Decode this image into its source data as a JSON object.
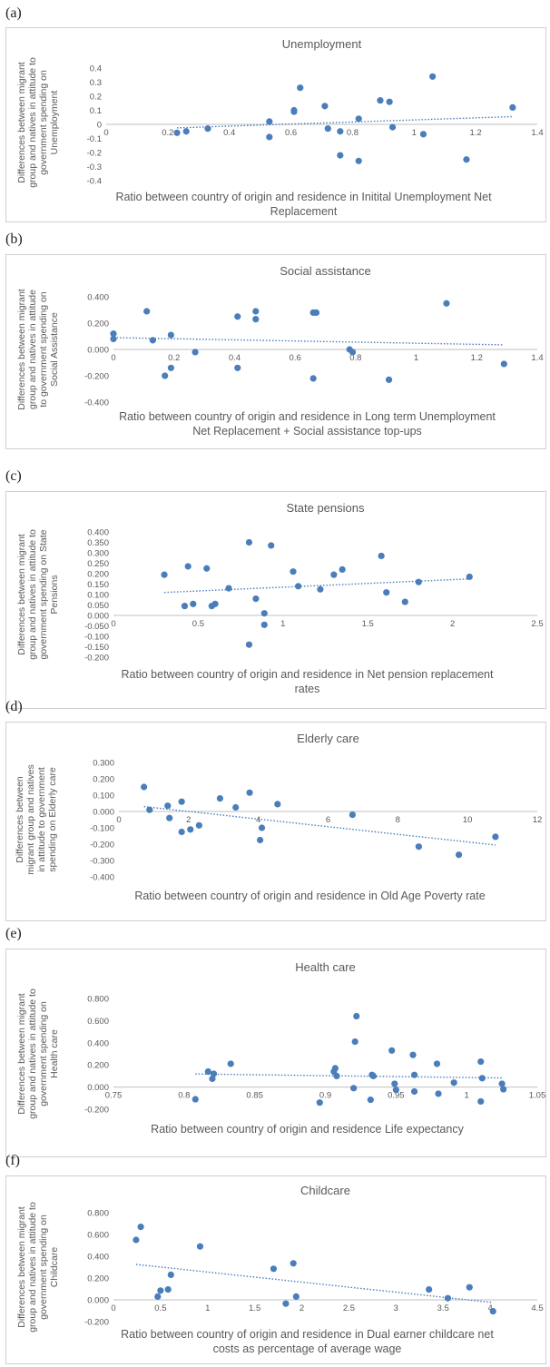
{
  "chart_data": [
    {
      "type": "scatter",
      "panel": "(a)",
      "title": "Unemployment",
      "xlabel": [
        "Ratio between country of origin and residence in Initital Unemployment Net",
        "Replacement"
      ],
      "ylabel": [
        "Differences between migrant",
        "group and natives in attitude to",
        "government spending on",
        "Unemployment"
      ],
      "xlim": [
        0,
        1.4
      ],
      "ylim": [
        -0.4,
        0.4
      ],
      "xticks": [
        "0",
        "0.2",
        "0.4",
        "0.6",
        "0.8",
        "1",
        "1.2",
        "1.4"
      ],
      "yticks": [
        "0.4",
        "0.3",
        "0.2",
        "0.1",
        "0",
        "-0.1",
        "-0.2",
        "-0.3",
        "-0.4"
      ],
      "trendline": "linear, dotted",
      "points": [
        {
          "x": 0.23,
          "y": -0.06
        },
        {
          "x": 0.26,
          "y": -0.05
        },
        {
          "x": 0.33,
          "y": -0.03
        },
        {
          "x": 0.53,
          "y": 0.02
        },
        {
          "x": 0.53,
          "y": -0.09
        },
        {
          "x": 0.61,
          "y": 0.1
        },
        {
          "x": 0.61,
          "y": 0.09
        },
        {
          "x": 0.63,
          "y": 0.26
        },
        {
          "x": 0.71,
          "y": 0.13
        },
        {
          "x": 0.72,
          "y": -0.03
        },
        {
          "x": 0.76,
          "y": -0.05
        },
        {
          "x": 0.76,
          "y": -0.22
        },
        {
          "x": 0.82,
          "y": 0.04
        },
        {
          "x": 0.82,
          "y": -0.26
        },
        {
          "x": 0.89,
          "y": 0.17
        },
        {
          "x": 0.92,
          "y": 0.16
        },
        {
          "x": 0.93,
          "y": -0.02
        },
        {
          "x": 1.03,
          "y": -0.07
        },
        {
          "x": 1.06,
          "y": 0.34
        },
        {
          "x": 1.17,
          "y": -0.25
        },
        {
          "x": 1.32,
          "y": 0.12
        }
      ],
      "trend": [
        [
          0.23,
          -0.025
        ],
        [
          1.32,
          0.055
        ]
      ]
    },
    {
      "type": "scatter",
      "panel": "(b)",
      "title": "Social assistance",
      "xlabel": [
        "Ratio between country of origin and residence in Long term Unemployment",
        "Net Replacement + Social assistance top-ups"
      ],
      "ylabel": [
        "Differences between migrant",
        "group and natives in attitude",
        "to government spending on",
        "Social Assistance"
      ],
      "xlim": [
        0,
        1.4
      ],
      "ylim": [
        -0.4,
        0.4
      ],
      "xticks": [
        "0",
        "0.2",
        "0.4",
        "0.6",
        "0.8",
        "1",
        "1.2",
        "1.4"
      ],
      "yticks": [
        "0.400",
        "0.200",
        "0.000",
        "-0.200",
        "-0.400"
      ],
      "trendline": "linear, dotted",
      "points": [
        {
          "x": 0.0,
          "y": 0.12
        },
        {
          "x": 0.0,
          "y": 0.08
        },
        {
          "x": 0.11,
          "y": 0.29
        },
        {
          "x": 0.13,
          "y": 0.07
        },
        {
          "x": 0.17,
          "y": -0.2
        },
        {
          "x": 0.19,
          "y": 0.11
        },
        {
          "x": 0.19,
          "y": -0.14
        },
        {
          "x": 0.27,
          "y": -0.02
        },
        {
          "x": 0.41,
          "y": 0.25
        },
        {
          "x": 0.41,
          "y": -0.14
        },
        {
          "x": 0.47,
          "y": 0.29
        },
        {
          "x": 0.47,
          "y": 0.23
        },
        {
          "x": 0.66,
          "y": 0.28
        },
        {
          "x": 0.67,
          "y": 0.28
        },
        {
          "x": 0.66,
          "y": -0.22
        },
        {
          "x": 0.78,
          "y": 0.0
        },
        {
          "x": 0.79,
          "y": -0.02
        },
        {
          "x": 0.91,
          "y": -0.23
        },
        {
          "x": 1.1,
          "y": 0.35
        },
        {
          "x": 1.29,
          "y": -0.11
        }
      ],
      "trend": [
        [
          0.0,
          0.09
        ],
        [
          1.29,
          0.035
        ]
      ]
    },
    {
      "type": "scatter",
      "panel": "(c)",
      "title": "State pensions",
      "xlabel": [
        "Ratio between country of origin and residence in Net pension replacement",
        "rates"
      ],
      "ylabel": [
        "Differences between migrant",
        "group and natives in attitude to",
        "government spending on State",
        "Pensions"
      ],
      "xlim": [
        0,
        2.5
      ],
      "ylim": [
        -0.2,
        0.4
      ],
      "xticks": [
        "0",
        "0.5",
        "1",
        "1.5",
        "2",
        "2.5"
      ],
      "yticks": [
        "0.400",
        "0.350",
        "0.300",
        "0.250",
        "0.200",
        "0.150",
        "0.100",
        "0.050",
        "0.000",
        "-0.050",
        "-0.100",
        "-0.150",
        "-0.200"
      ],
      "trendline": "linear, dotted",
      "points": [
        {
          "x": 0.3,
          "y": 0.195
        },
        {
          "x": 0.42,
          "y": 0.045
        },
        {
          "x": 0.44,
          "y": 0.235
        },
        {
          "x": 0.47,
          "y": 0.055
        },
        {
          "x": 0.55,
          "y": 0.225
        },
        {
          "x": 0.58,
          "y": 0.045
        },
        {
          "x": 0.6,
          "y": 0.055
        },
        {
          "x": 0.68,
          "y": 0.13
        },
        {
          "x": 0.8,
          "y": 0.35
        },
        {
          "x": 0.8,
          "y": -0.14
        },
        {
          "x": 0.84,
          "y": 0.08
        },
        {
          "x": 0.89,
          "y": 0.01
        },
        {
          "x": 0.89,
          "y": -0.045
        },
        {
          "x": 0.93,
          "y": 0.335
        },
        {
          "x": 1.06,
          "y": 0.21
        },
        {
          "x": 1.09,
          "y": 0.14
        },
        {
          "x": 1.22,
          "y": 0.125
        },
        {
          "x": 1.3,
          "y": 0.195
        },
        {
          "x": 1.35,
          "y": 0.22
        },
        {
          "x": 1.58,
          "y": 0.285
        },
        {
          "x": 1.61,
          "y": 0.11
        },
        {
          "x": 1.72,
          "y": 0.065
        },
        {
          "x": 1.8,
          "y": 0.16
        },
        {
          "x": 2.1,
          "y": 0.185
        }
      ],
      "trend": [
        [
          0.3,
          0.11
        ],
        [
          2.1,
          0.175
        ]
      ]
    },
    {
      "type": "scatter",
      "panel": "(d)",
      "title": "Elderly care",
      "xlabel": [
        "Ratio between country of origin and residence in Old Age Poverty rate"
      ],
      "ylabel": [
        "Differences between",
        "migrant group and natives",
        "in attitude to government",
        "spending on Elderly care"
      ],
      "xlim": [
        0,
        12
      ],
      "ylim": [
        -0.4,
        0.3
      ],
      "xticks": [
        "0",
        "2",
        "4",
        "6",
        "8",
        "10",
        "12"
      ],
      "yticks": [
        "0.300",
        "0.200",
        "0.100",
        "0.000",
        "-0.100",
        "-0.200",
        "-0.300",
        "-0.400"
      ],
      "trendline": "linear, dotted",
      "points": [
        {
          "x": 0.72,
          "y": 0.15
        },
        {
          "x": 0.88,
          "y": 0.01
        },
        {
          "x": 1.4,
          "y": 0.035
        },
        {
          "x": 1.45,
          "y": -0.04
        },
        {
          "x": 1.8,
          "y": 0.06
        },
        {
          "x": 1.8,
          "y": -0.125
        },
        {
          "x": 2.05,
          "y": -0.11
        },
        {
          "x": 2.3,
          "y": -0.085
        },
        {
          "x": 2.9,
          "y": 0.08
        },
        {
          "x": 3.35,
          "y": 0.025
        },
        {
          "x": 3.75,
          "y": 0.115
        },
        {
          "x": 4.05,
          "y": -0.175
        },
        {
          "x": 4.1,
          "y": -0.1
        },
        {
          "x": 4.55,
          "y": 0.045
        },
        {
          "x": 6.7,
          "y": -0.02
        },
        {
          "x": 8.6,
          "y": -0.215
        },
        {
          "x": 9.75,
          "y": -0.265
        },
        {
          "x": 10.8,
          "y": -0.155
        }
      ],
      "trend": [
        [
          0.72,
          0.03
        ],
        [
          10.8,
          -0.205
        ]
      ]
    },
    {
      "type": "scatter",
      "panel": "(e)",
      "title": "Health care",
      "xlabel": [
        "Ratio between country of origin and residence Life expectancy"
      ],
      "ylabel": [
        "Differences between migrant",
        "group and natives in attitude to",
        "government spending on",
        "Health care"
      ],
      "xlim": [
        0.75,
        1.05
      ],
      "ylim": [
        -0.2,
        0.8
      ],
      "xticks": [
        "0.75",
        "0.8",
        "0.85",
        "0.9",
        "0.95",
        "1",
        "1.05"
      ],
      "yticks": [
        "0.800",
        "0.600",
        "0.400",
        "0.200",
        "0.000",
        "-0.200"
      ],
      "trendline": "linear, dotted",
      "points": [
        {
          "x": 0.808,
          "y": -0.11
        },
        {
          "x": 0.817,
          "y": 0.14
        },
        {
          "x": 0.82,
          "y": 0.075
        },
        {
          "x": 0.821,
          "y": 0.12
        },
        {
          "x": 0.833,
          "y": 0.21
        },
        {
          "x": 0.896,
          "y": -0.14
        },
        {
          "x": 0.906,
          "y": 0.14
        },
        {
          "x": 0.907,
          "y": 0.17
        },
        {
          "x": 0.908,
          "y": 0.1
        },
        {
          "x": 0.92,
          "y": -0.01
        },
        {
          "x": 0.921,
          "y": 0.41
        },
        {
          "x": 0.922,
          "y": 0.64
        },
        {
          "x": 0.932,
          "y": -0.115
        },
        {
          "x": 0.933,
          "y": 0.11
        },
        {
          "x": 0.934,
          "y": 0.1
        },
        {
          "x": 0.947,
          "y": 0.33
        },
        {
          "x": 0.949,
          "y": 0.03
        },
        {
          "x": 0.95,
          "y": -0.025
        },
        {
          "x": 0.962,
          "y": 0.29
        },
        {
          "x": 0.963,
          "y": 0.11
        },
        {
          "x": 0.963,
          "y": -0.04
        },
        {
          "x": 0.979,
          "y": 0.21
        },
        {
          "x": 0.98,
          "y": -0.06
        },
        {
          "x": 0.991,
          "y": 0.04
        },
        {
          "x": 1.01,
          "y": 0.23
        },
        {
          "x": 1.011,
          "y": 0.08
        },
        {
          "x": 1.01,
          "y": -0.13
        },
        {
          "x": 1.025,
          "y": 0.03
        },
        {
          "x": 1.026,
          "y": -0.02
        }
      ],
      "trend": [
        [
          0.808,
          0.118
        ],
        [
          1.026,
          0.082
        ]
      ]
    },
    {
      "type": "scatter",
      "panel": "(f)",
      "title": "Childcare",
      "xlabel": [
        "Ratio between country of origin and residence in Dual earner childcare net",
        "costs as percentage of average wage"
      ],
      "ylabel": [
        "Differences between migrant",
        "group and natives in attitude to",
        "government spending on",
        "Childcare"
      ],
      "xlim": [
        0,
        4.5
      ],
      "ylim": [
        -0.2,
        0.8
      ],
      "xticks": [
        "0",
        "0.5",
        "1",
        "1.5",
        "2",
        "2.5",
        "3",
        "3.5",
        "4",
        "4.5"
      ],
      "yticks": [
        "0.800",
        "0.600",
        "0.400",
        "0.200",
        "0.000",
        "-0.200"
      ],
      "trendline": "linear, dotted",
      "points": [
        {
          "x": 0.24,
          "y": 0.55
        },
        {
          "x": 0.29,
          "y": 0.67
        },
        {
          "x": 0.47,
          "y": 0.03
        },
        {
          "x": 0.5,
          "y": 0.085
        },
        {
          "x": 0.58,
          "y": 0.095
        },
        {
          "x": 0.61,
          "y": 0.23
        },
        {
          "x": 0.92,
          "y": 0.49
        },
        {
          "x": 1.7,
          "y": 0.285
        },
        {
          "x": 1.83,
          "y": -0.035
        },
        {
          "x": 1.91,
          "y": 0.335
        },
        {
          "x": 1.94,
          "y": 0.03
        },
        {
          "x": 3.35,
          "y": 0.095
        },
        {
          "x": 3.55,
          "y": 0.015
        },
        {
          "x": 3.78,
          "y": 0.115
        },
        {
          "x": 4.03,
          "y": -0.105
        }
      ],
      "trend": [
        [
          0.24,
          0.325
        ],
        [
          4.03,
          -0.025
        ]
      ]
    }
  ]
}
